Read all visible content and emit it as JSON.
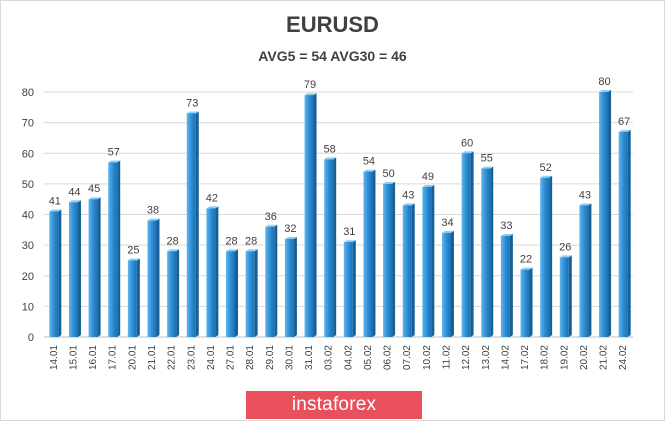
{
  "chart_data": {
    "type": "bar",
    "title": "EURUSD",
    "subtitle": "AVG5 = 54 AVG30 = 46",
    "categories": [
      "14.01",
      "15.01",
      "16.01",
      "17.01",
      "20.01",
      "21.01",
      "22.01",
      "23.01",
      "24.01",
      "27.01",
      "28.01",
      "29.01",
      "30.01",
      "31.01",
      "03.02",
      "04.02",
      "05.02",
      "06.02",
      "07.02",
      "10.02",
      "11.02",
      "12.02",
      "13.02",
      "14.02",
      "17.02",
      "18.02",
      "19.02",
      "20.02",
      "21.02",
      "24.02"
    ],
    "values": [
      41,
      44,
      45,
      57,
      25,
      38,
      28,
      73,
      42,
      28,
      28,
      36,
      32,
      79,
      58,
      31,
      54,
      50,
      43,
      49,
      34,
      60,
      55,
      33,
      22,
      52,
      26,
      43,
      80,
      67
    ],
    "ylim": [
      0,
      80
    ],
    "yticks": [
      0,
      10,
      20,
      30,
      40,
      50,
      60,
      70,
      80
    ],
    "grid": true,
    "bar_color": "#2e8fd6"
  },
  "logo": {
    "text": "instaforex",
    "color": "#e8505b"
  }
}
